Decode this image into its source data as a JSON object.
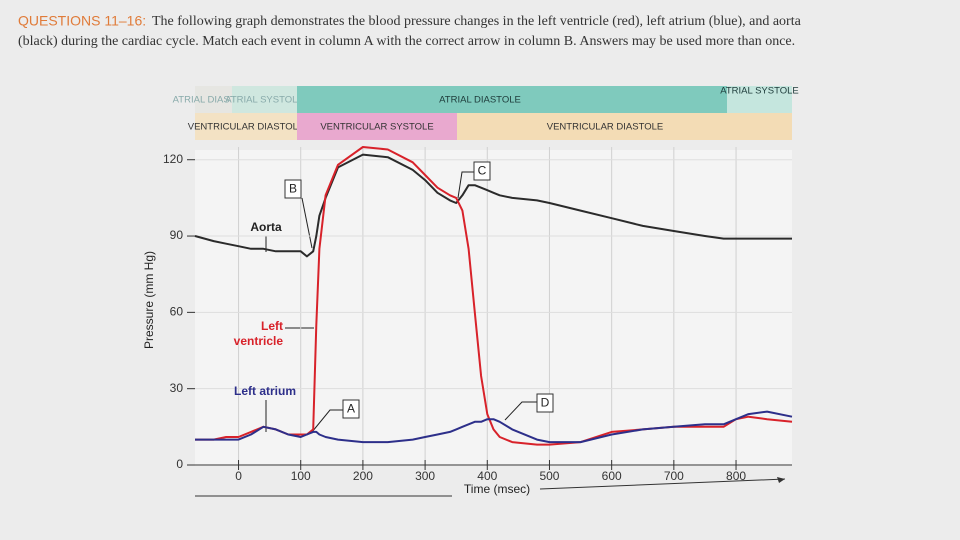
{
  "header": {
    "label": "QUESTIONS 11–16:",
    "line1": "The following graph demonstrates the blood pressure changes in the left ventricle (red), left atrium (blue), and aorta",
    "line2": "(black) during the cardiac cycle. Match each event in column A with the correct arrow in column B. Answers may be used more than once."
  },
  "chart_data": {
    "type": "line",
    "atrial_phases": [
      "ATRIAL DIASTOLE",
      "ATRIAL SYSTOLE",
      "ATRIAL DIASTOLE",
      "ATRIAL SYSTOLE"
    ],
    "ventricular_phases": [
      "VENTRICULAR DIASTOLE",
      "VENTRICULAR SYSTOLE",
      "VENTRICULAR DIASTOLE"
    ],
    "x_label": "Time (msec)",
    "y_label": "Pressure (mm Hg)",
    "annotations": {
      "aorta": "Aorta",
      "lv_1": "Left",
      "lv_2": "ventricle",
      "la": "Left atrium",
      "a": "A",
      "b": "B",
      "c": "C",
      "d": "D"
    },
    "x": [
      -70,
      -40,
      -20,
      0,
      20,
      40,
      60,
      80,
      100,
      110,
      120,
      125,
      130,
      140,
      160,
      200,
      240,
      280,
      300,
      320,
      340,
      350,
      360,
      370,
      380,
      390,
      400,
      410,
      420,
      440,
      480,
      500,
      550,
      600,
      650,
      700,
      750,
      780,
      800,
      820,
      850,
      890
    ],
    "series": [
      {
        "name": "Aorta",
        "color": "#2b2b2b",
        "values": [
          90,
          88,
          87,
          86,
          85,
          85,
          84,
          84,
          84,
          82,
          84,
          90,
          98,
          105,
          117,
          122,
          121,
          116,
          112,
          107,
          104,
          103,
          106,
          110,
          110,
          109,
          108,
          107,
          106,
          105,
          104,
          103,
          100,
          97,
          94,
          92,
          90,
          89,
          89,
          89,
          89,
          89
        ]
      },
      {
        "name": "Left ventricle",
        "color": "#d8222a",
        "values": [
          10,
          10,
          11,
          11,
          13,
          15,
          14,
          12,
          12,
          12,
          14,
          55,
          85,
          106,
          118,
          125,
          124,
          119,
          114,
          109,
          106,
          105,
          100,
          85,
          60,
          35,
          20,
          14,
          11,
          9,
          8,
          8,
          9,
          13,
          14,
          15,
          15,
          15,
          18,
          19,
          18,
          17
        ]
      },
      {
        "name": "Left atrium",
        "color": "#2d2f8a",
        "values": [
          10,
          10,
          10,
          10,
          12,
          15,
          14,
          12,
          11,
          12,
          13,
          13,
          12,
          11,
          10,
          9,
          9,
          10,
          11,
          12,
          13,
          14,
          15,
          16,
          17,
          17,
          18,
          18,
          17,
          14,
          10,
          9,
          9,
          12,
          14,
          15,
          16,
          16,
          18,
          20,
          21,
          19
        ]
      }
    ],
    "xlim": [
      -70,
      890
    ],
    "ylim": [
      0,
      125
    ],
    "xticks": [
      0,
      100,
      200,
      300,
      400,
      500,
      600,
      700,
      800
    ],
    "yticks": [
      0,
      30,
      60,
      90,
      120
    ],
    "grid": true
  }
}
